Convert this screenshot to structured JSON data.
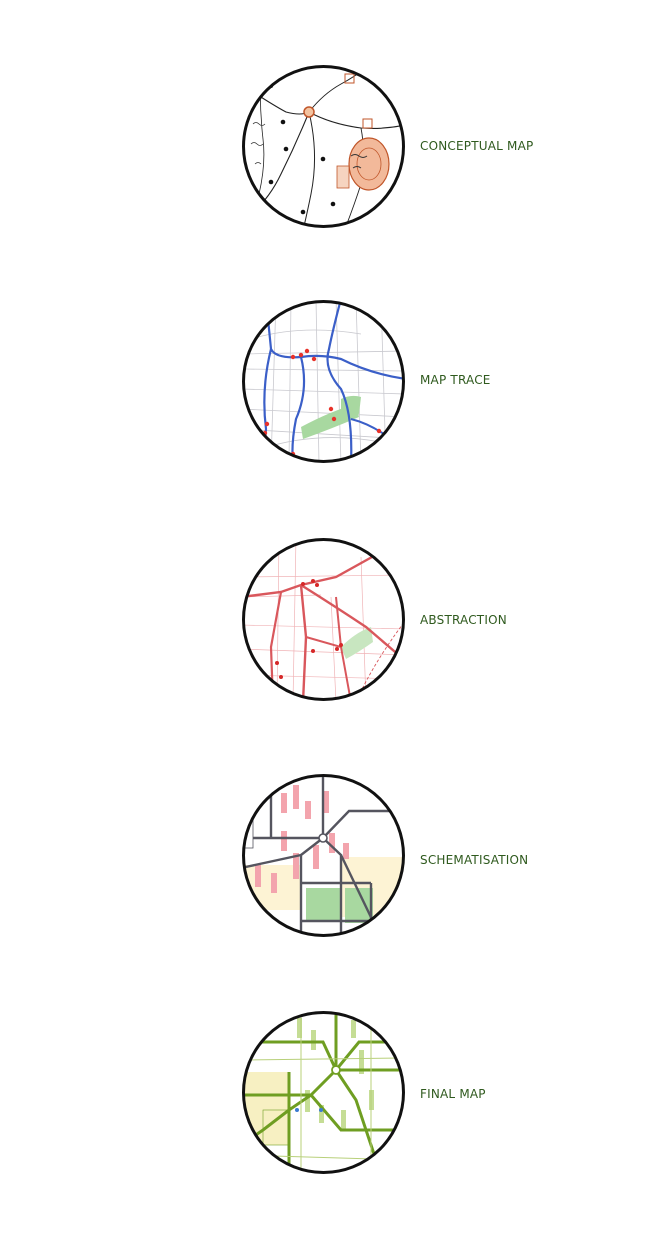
{
  "colors": {
    "label": "#2f5a1e",
    "ring": "#111111",
    "trace_route": "#3b5fc8",
    "trace_poi": "#e8322a",
    "park": "#a8d8a0",
    "river": "#3b5fc8",
    "abstraction_route": "#d9575c",
    "schematic_route": "#55555f",
    "schematic_pink": "#f3a4ad",
    "schematic_sand": "#fdf3d4",
    "final_route": "#6f9e22",
    "final_fill": "#f7f0c2"
  },
  "stages": [
    {
      "label": "CONCEPTUAL MAP",
      "icon": "hand-drawn-map-icon"
    },
    {
      "label": "MAP TRACE",
      "icon": "traced-map-icon"
    },
    {
      "label": "ABSTRACTION",
      "icon": "abstract-map-icon"
    },
    {
      "label": "SCHEMATISATION",
      "icon": "schematic-map-icon"
    },
    {
      "label": "FINAL MAP",
      "icon": "final-map-icon"
    }
  ]
}
